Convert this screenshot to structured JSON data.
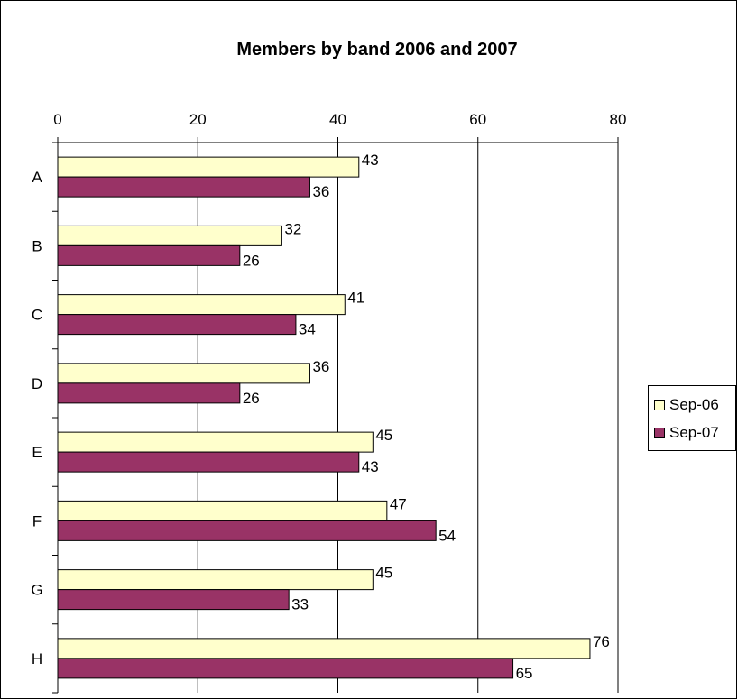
{
  "chart_data": {
    "type": "bar",
    "orientation": "horizontal",
    "title": "Members by band 2006 and 2007",
    "categories": [
      "A",
      "B",
      "C",
      "D",
      "E",
      "F",
      "G",
      "H"
    ],
    "series": [
      {
        "name": "Sep-06",
        "color": "#ffffcc",
        "values": [
          43,
          32,
          41,
          36,
          45,
          47,
          45,
          76
        ]
      },
      {
        "name": "Sep-07",
        "color": "#993366",
        "values": [
          36,
          26,
          34,
          26,
          43,
          54,
          33,
          65
        ]
      }
    ],
    "xlim": [
      0,
      80
    ],
    "xticks": [
      0,
      20,
      40,
      60,
      80
    ],
    "x_axis_position": "top",
    "grid": "vertical",
    "data_labels": true,
    "legend_position": "right"
  }
}
